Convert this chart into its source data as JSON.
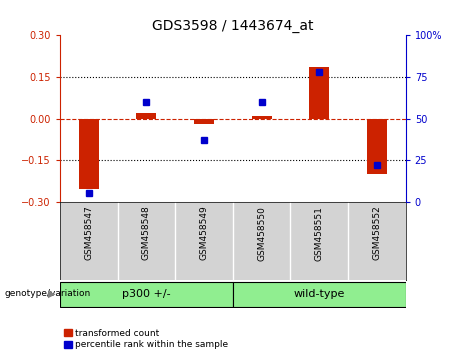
{
  "title": "GDS3598 / 1443674_at",
  "samples": [
    "GSM458547",
    "GSM458548",
    "GSM458549",
    "GSM458550",
    "GSM458551",
    "GSM458552"
  ],
  "red_values": [
    -0.255,
    0.02,
    -0.02,
    0.01,
    0.185,
    -0.2
  ],
  "blue_values": [
    5,
    60,
    37,
    60,
    78,
    22
  ],
  "group_label": "genotype/variation",
  "group1_label": "p300 +/-",
  "group2_label": "wild-type",
  "group1_range": [
    0,
    2
  ],
  "group2_range": [
    3,
    5
  ],
  "group_color": "#90EE90",
  "red_ylim": [
    -0.3,
    0.3
  ],
  "blue_ylim": [
    0,
    100
  ],
  "red_yticks": [
    -0.3,
    -0.15,
    0,
    0.15,
    0.3
  ],
  "blue_yticks": [
    0,
    25,
    50,
    75,
    100
  ],
  "red_color": "#cc2200",
  "blue_color": "#0000cc",
  "bg_color": "#ffffff",
  "label_bg_color": "#d3d3d3",
  "bar_width": 0.35,
  "legend_red_label": "transformed count",
  "legend_blue_label": "percentile rank within the sample",
  "xlim": [
    -0.5,
    5.5
  ]
}
